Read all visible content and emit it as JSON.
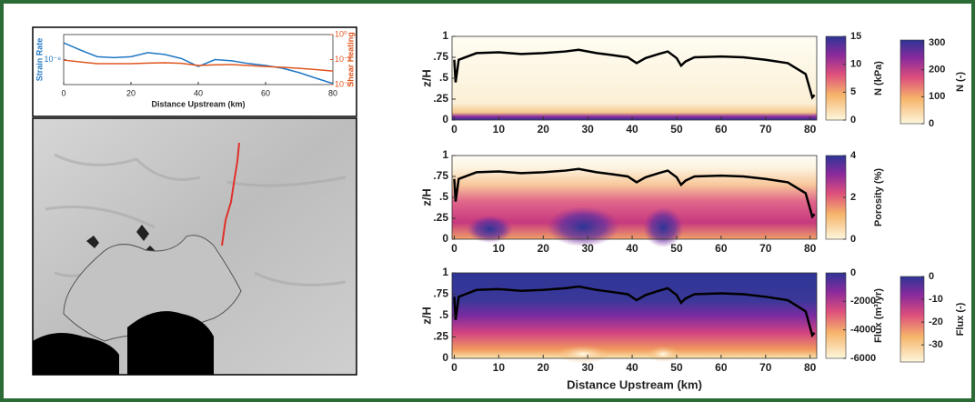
{
  "chart_data": [
    {
      "type": "line",
      "xlabel": "Distance Upstream (km)",
      "ylabel": "Strain Rate",
      "y2label": "Shear Heating",
      "log_scale": true,
      "x": [
        0,
        5,
        10,
        15,
        20,
        25,
        30,
        35,
        40,
        45,
        50,
        55,
        60,
        65,
        70,
        75,
        80
      ],
      "series": [
        {
          "name": "Strain Rate",
          "color": "#1f77c4",
          "axis": "y",
          "values": [
            4.7e-08,
            2.4e-08,
            1.3e-08,
            1.2e-08,
            1.3e-08,
            1.9e-08,
            1.6e-08,
            1.1e-08,
            5.3e-09,
            1e-08,
            8.9e-09,
            6.9e-09,
            5.8e-09,
            4.5e-09,
            3e-09,
            1.8e-09,
            1.1e-09
          ]
        },
        {
          "name": "Shear Heating",
          "color": "#e0561f",
          "axis": "y2",
          "values": [
            0.0091,
            0.0065,
            0.0047,
            0.0047,
            0.0047,
            0.0052,
            0.0056,
            0.005,
            0.0034,
            0.0038,
            0.004,
            0.0034,
            0.0028,
            0.0024,
            0.002,
            0.0016,
            0.0012
          ]
        }
      ],
      "xlim": [
        0,
        80
      ],
      "xticks": [
        0,
        20,
        40,
        60,
        80
      ],
      "ylim": [
        1e-09,
        1e-07
      ],
      "yticks": [
        {
          "value": 1e-08,
          "label": "10⁻⁸"
        }
      ],
      "y2lim": [
        0.0001,
        1
      ],
      "y2ticks": [
        {
          "value": 1,
          "label": "10⁰"
        },
        {
          "value": 0.01,
          "label": "10⁻²"
        },
        {
          "value": 0.0001,
          "label": "10⁻⁴"
        }
      ]
    },
    {
      "type": "heatmap",
      "ylabel": "z/H",
      "surface": {
        "color": "#000000",
        "x": [
          0,
          0.3,
          1,
          3,
          5,
          10,
          15,
          20,
          25,
          28,
          32,
          35,
          39,
          41,
          43,
          46,
          48,
          50,
          51,
          52,
          54,
          60,
          65,
          70,
          75,
          79,
          80.5,
          81
        ],
        "values": [
          0.72,
          0.45,
          0.72,
          0.76,
          0.8,
          0.81,
          0.79,
          0.8,
          0.82,
          0.84,
          0.8,
          0.78,
          0.75,
          0.68,
          0.74,
          0.79,
          0.82,
          0.74,
          0.65,
          0.7,
          0.75,
          0.76,
          0.75,
          0.72,
          0.68,
          0.55,
          0.27,
          0.3
        ]
      },
      "xlim": [
        -0.5,
        81.5
      ],
      "xticks": [
        0,
        10,
        20,
        30,
        40,
        50,
        60,
        70,
        80
      ],
      "ylim": [
        0,
        1
      ],
      "yticks": [
        0,
        {
          "value": 0.25,
          "label": ".25"
        },
        {
          "value": 0.5,
          "label": ".5"
        },
        {
          "value": 0.75,
          "label": ".75"
        },
        1
      ],
      "colorbars": [
        {
          "label": "N (kPa)",
          "lim": [
            0,
            15
          ],
          "ticks": [
            0,
            5,
            10,
            15
          ]
        },
        {
          "label": "N (-)",
          "lim": [
            0,
            310
          ],
          "ticks": [
            0,
            100,
            200,
            300
          ]
        }
      ]
    },
    {
      "type": "heatmap",
      "ylabel": "z/H",
      "surface": {
        "color": "#000000",
        "x": [
          0,
          0.3,
          1,
          3,
          5,
          10,
          15,
          20,
          25,
          28,
          32,
          35,
          39,
          41,
          43,
          46,
          48,
          50,
          51,
          52,
          54,
          60,
          65,
          70,
          75,
          79,
          80.5,
          81
        ],
        "values": [
          0.72,
          0.45,
          0.72,
          0.76,
          0.8,
          0.81,
          0.79,
          0.8,
          0.82,
          0.84,
          0.8,
          0.78,
          0.75,
          0.68,
          0.74,
          0.79,
          0.82,
          0.74,
          0.65,
          0.7,
          0.75,
          0.76,
          0.75,
          0.72,
          0.68,
          0.55,
          0.27,
          0.3
        ]
      },
      "xlim": [
        -0.5,
        81.5
      ],
      "xticks": [
        0,
        10,
        20,
        30,
        40,
        50,
        60,
        70,
        80
      ],
      "ylim": [
        0,
        1
      ],
      "yticks": [
        0,
        {
          "value": 0.25,
          "label": ".25"
        },
        {
          "value": 0.5,
          "label": ".5"
        },
        {
          "value": 0.75,
          "label": ".75"
        },
        1
      ],
      "colorbars": [
        {
          "label": "Porosity (%)",
          "lim": [
            0,
            4
          ],
          "ticks": [
            0,
            2,
            4
          ]
        }
      ]
    },
    {
      "type": "heatmap",
      "ylabel": "z/H",
      "xlabel": "Distance Upstream (km)",
      "surface": {
        "color": "#000000",
        "x": [
          0,
          0.3,
          1,
          3,
          5,
          10,
          15,
          20,
          25,
          28,
          32,
          35,
          39,
          41,
          43,
          46,
          48,
          50,
          51,
          52,
          54,
          60,
          65,
          70,
          75,
          79,
          80.5,
          81
        ],
        "values": [
          0.72,
          0.45,
          0.72,
          0.76,
          0.8,
          0.81,
          0.79,
          0.8,
          0.82,
          0.84,
          0.8,
          0.78,
          0.75,
          0.68,
          0.74,
          0.79,
          0.82,
          0.74,
          0.65,
          0.7,
          0.75,
          0.76,
          0.75,
          0.72,
          0.68,
          0.55,
          0.27,
          0.3
        ]
      },
      "xlim": [
        -0.5,
        81.5
      ],
      "xticks": [
        0,
        10,
        20,
        30,
        40,
        50,
        60,
        70,
        80
      ],
      "ylim": [
        0,
        1
      ],
      "yticks": [
        0,
        {
          "value": 0.25,
          "label": ".25"
        },
        {
          "value": 0.5,
          "label": ".5"
        },
        {
          "value": 0.75,
          "label": ".75"
        },
        1
      ],
      "colorbars": [
        {
          "label": "Flux (m³/yr)",
          "lim": [
            -6000,
            0
          ],
          "ticks": [
            0,
            -2000,
            -4000,
            -6000
          ]
        },
        {
          "label": "Flux (-)",
          "lim": [
            -37.5,
            0
          ],
          "ticks": [
            0,
            -10,
            -20,
            -30
          ]
        }
      ]
    }
  ]
}
